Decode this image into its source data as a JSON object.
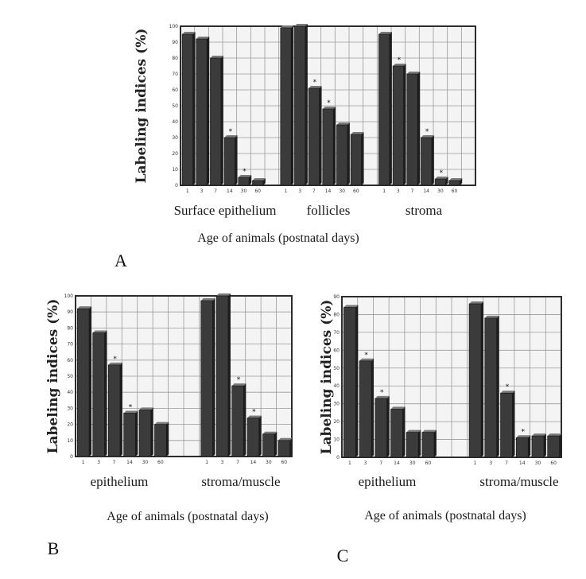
{
  "chart_data": [
    {
      "type": "bar",
      "panel_label": "A",
      "ylabel": "Labeling indices (%)",
      "xlabel": "Age of animals (postnatal days)",
      "ylim": [
        0,
        100
      ],
      "yticks": [
        "0",
        "10",
        "20",
        "30",
        "40",
        "50",
        "60",
        "70",
        "80",
        "90",
        "100"
      ],
      "grid": true,
      "categories": [
        "1",
        "3",
        "7",
        "14",
        "30",
        "60"
      ],
      "groups": [
        {
          "name": "Surface epithelium",
          "values": [
            95,
            92,
            80,
            30,
            5,
            3
          ],
          "stars": [
            false,
            false,
            false,
            true,
            true,
            false
          ]
        },
        {
          "name": "follicles",
          "values": [
            99,
            100,
            61,
            48,
            38,
            32
          ],
          "stars": [
            false,
            false,
            true,
            true,
            false,
            false
          ]
        },
        {
          "name": "stroma",
          "values": [
            95,
            75,
            70,
            30,
            4,
            3
          ],
          "stars": [
            false,
            true,
            false,
            true,
            true,
            false
          ]
        }
      ]
    },
    {
      "type": "bar",
      "panel_label": "B",
      "ylabel": "Labeling indices (%)",
      "xlabel": "Age of animals (postnatal days)",
      "ylim": [
        0,
        100
      ],
      "yticks": [
        "0",
        "10",
        "20",
        "30",
        "40",
        "50",
        "60",
        "70",
        "80",
        "90",
        "100"
      ],
      "grid": true,
      "categories": [
        "1",
        "3",
        "7",
        "14",
        "30",
        "60"
      ],
      "groups": [
        {
          "name": "epithelium",
          "values": [
            92,
            77,
            57,
            27,
            29,
            20
          ],
          "stars": [
            false,
            false,
            true,
            true,
            false,
            false
          ]
        },
        {
          "name": "stroma/muscle",
          "values": [
            97,
            100,
            44,
            24,
            14,
            10
          ],
          "stars": [
            false,
            false,
            true,
            true,
            false,
            false
          ]
        }
      ]
    },
    {
      "type": "bar",
      "panel_label": "C",
      "ylabel": "Labeling indices (%)",
      "xlabel": "Age of animals (postnatal days)",
      "ylim": [
        0,
        90
      ],
      "yticks": [
        "0",
        "10",
        "20",
        "30",
        "40",
        "50",
        "60",
        "70",
        "80",
        "90"
      ],
      "grid": true,
      "categories": [
        "1",
        "3",
        "7",
        "14",
        "30",
        "60"
      ],
      "groups": [
        {
          "name": "epithelium",
          "values": [
            84,
            54,
            33,
            27,
            14,
            14
          ],
          "stars": [
            false,
            true,
            true,
            false,
            false,
            false
          ]
        },
        {
          "name": "stroma/muscle",
          "values": [
            86,
            78,
            36,
            11,
            12,
            12
          ],
          "stars": [
            false,
            false,
            true,
            true,
            false,
            false
          ]
        }
      ]
    }
  ],
  "colors": {
    "bar": "#3b3b3b",
    "bar_highlight": "#7a7a7a",
    "grid": "#9a9a9a",
    "frame": "#222222"
  }
}
